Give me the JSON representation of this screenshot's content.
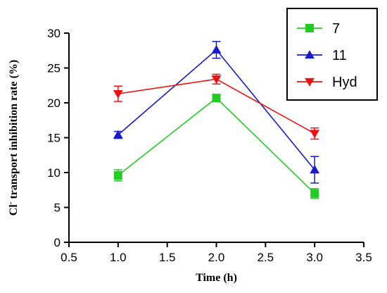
{
  "chart_data": {
    "type": "line",
    "xlabel": "Time (h)",
    "ylabel_prefix": "Cl",
    "ylabel_sup": "-",
    "ylabel_rest": " transport inhibition rate (%)",
    "xlim": [
      0.5,
      3.5
    ],
    "ylim": [
      0,
      30
    ],
    "x_ticks": [
      "0.5",
      "1.0",
      "1.5",
      "2.0",
      "2.5",
      "3.0",
      "3.5"
    ],
    "y_ticks": [
      "0",
      "5",
      "10",
      "15",
      "20",
      "25",
      "30"
    ],
    "grid": false,
    "legend_position": "top-right",
    "x": [
      1.0,
      2.0,
      3.0
    ],
    "series": [
      {
        "name": "7",
        "color": "#22cc22",
        "marker": "square",
        "values": [
          9.6,
          20.7,
          7.0
        ],
        "errors": [
          0.8,
          0.5,
          0.7
        ]
      },
      {
        "name": "11",
        "color": "#1a1acc",
        "marker": "triangle-up",
        "values": [
          15.4,
          27.6,
          10.4
        ],
        "errors": [
          0.5,
          1.2,
          1.9
        ]
      },
      {
        "name": "Hyd",
        "color": "#ee1111",
        "marker": "triangle-down",
        "values": [
          21.3,
          23.4,
          15.6
        ],
        "errors": [
          1.1,
          0.7,
          0.8
        ]
      }
    ]
  }
}
